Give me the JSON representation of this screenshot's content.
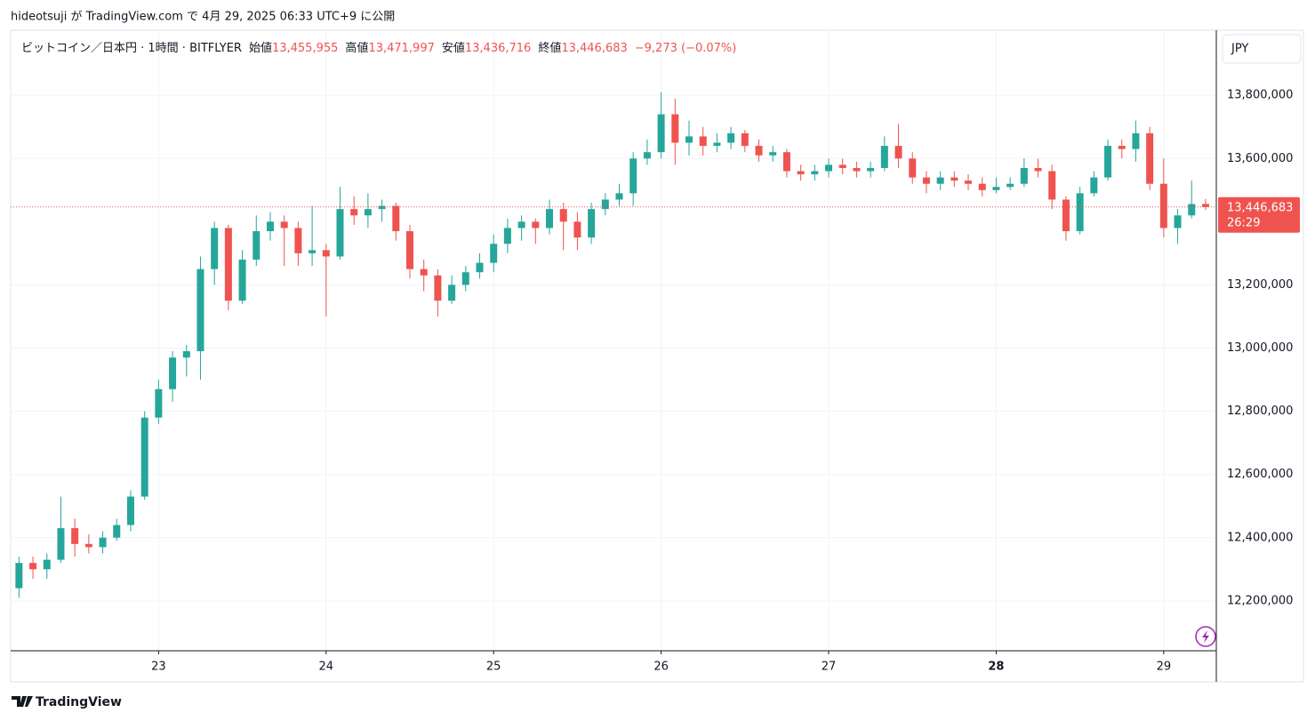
{
  "header": {
    "text": "hideotsuji が TradingView.com で 4月 29, 2025 06:33 UTC+9 に公開"
  },
  "footer": {
    "brand": "TradingView"
  },
  "chart_data": {
    "type": "candlestick",
    "symbol": "ビットコイン／日本円 · 1時間 · BITFLYER",
    "legend": [
      {
        "label": "始値",
        "value": "13,455,955"
      },
      {
        "label": "高値",
        "value": "13,471,997"
      },
      {
        "label": "安値",
        "value": "13,436,716"
      },
      {
        "label": "終値",
        "value": "13,446,683"
      }
    ],
    "change": "−9,273 (−0.07%)",
    "currency": "JPY",
    "last_price": {
      "value": 13446683,
      "label": "13,446,683"
    },
    "countdown": "26:29",
    "up_color": "#26a69a",
    "down_color": "#ef5350",
    "xlim": [
      22.117,
      29.314
    ],
    "xticks": [
      {
        "value": 23,
        "label": "23"
      },
      {
        "value": 24,
        "label": "24"
      },
      {
        "value": 25,
        "label": "25"
      },
      {
        "value": 26,
        "label": "26"
      },
      {
        "value": 27,
        "label": "27"
      },
      {
        "value": 28,
        "label": "28"
      },
      {
        "value": 29,
        "label": "29"
      }
    ],
    "bold_xtick": 28,
    "ylim": [
      12042000,
      14006000
    ],
    "yticks": [
      {
        "value": 12200000,
        "label": "12,200,000"
      },
      {
        "value": 12400000,
        "label": "12,400,000"
      },
      {
        "value": 12600000,
        "label": "12,600,000"
      },
      {
        "value": 12800000,
        "label": "12,800,000"
      },
      {
        "value": 13000000,
        "label": "13,000,000"
      },
      {
        "value": 13200000,
        "label": "13,200,000"
      },
      {
        "value": 13600000,
        "label": "13,600,000"
      },
      {
        "value": 13800000,
        "label": "13,800,000"
      }
    ],
    "grid": true,
    "x": [
      22.1667,
      22.25,
      22.3333,
      22.4167,
      22.5,
      22.5833,
      22.6667,
      22.75,
      22.8333,
      22.9167,
      23,
      23.0833,
      23.1667,
      23.25,
      23.3333,
      23.4167,
      23.5,
      23.5833,
      23.6667,
      23.75,
      23.8333,
      23.9167,
      24,
      24.0833,
      24.1667,
      24.25,
      24.3333,
      24.4167,
      24.5,
      24.5833,
      24.6667,
      24.75,
      24.8333,
      24.9167,
      25,
      25.0833,
      25.1667,
      25.25,
      25.3333,
      25.4167,
      25.5,
      25.5833,
      25.6667,
      25.75,
      25.8333,
      25.9167,
      26,
      26.0833,
      26.1667,
      26.25,
      26.3333,
      26.4167,
      26.5,
      26.5833,
      26.6667,
      26.75,
      26.8333,
      26.9167,
      27,
      27.0833,
      27.1667,
      27.25,
      27.3333,
      27.4167,
      27.5,
      27.5833,
      27.6667,
      27.75,
      27.8333,
      27.9167,
      28,
      28.0833,
      28.1667,
      28.25,
      28.3333,
      28.4167,
      28.5,
      28.5833,
      28.6667,
      28.75,
      28.8333,
      28.9167,
      29,
      29.0833,
      29.1667,
      29.25
    ],
    "open": [
      12240000,
      12320000,
      12300000,
      12330000,
      12430000,
      12380000,
      12370000,
      12400000,
      12440000,
      12530000,
      12780000,
      12870000,
      12970000,
      12990000,
      13250000,
      13380000,
      13150000,
      13280000,
      13370000,
      13400000,
      13380000,
      13300000,
      13310000,
      13290000,
      13440000,
      13420000,
      13440000,
      13450000,
      13370000,
      13250000,
      13230000,
      13150000,
      13200000,
      13240000,
      13270000,
      13330000,
      13380000,
      13400000,
      13380000,
      13440000,
      13400000,
      13350000,
      13440000,
      13470000,
      13490000,
      13600000,
      13620000,
      13740000,
      13650000,
      13670000,
      13640000,
      13650000,
      13680000,
      13640000,
      13610000,
      13620000,
      13560000,
      13550000,
      13560000,
      13580000,
      13570000,
      13560000,
      13570000,
      13640000,
      13600000,
      13540000,
      13520000,
      13540000,
      13530000,
      13520000,
      13500000,
      13510000,
      13520000,
      13570000,
      13560000,
      13470000,
      13370000,
      13490000,
      13540000,
      13640000,
      13630000,
      13680000,
      13520000,
      13380000,
      13420000,
      13455955
    ],
    "high": [
      12340000,
      12340000,
      12350000,
      12530000,
      12460000,
      12410000,
      12420000,
      12460000,
      12550000,
      12800000,
      12900000,
      12990000,
      13010000,
      13290000,
      13400000,
      13390000,
      13310000,
      13420000,
      13430000,
      13420000,
      13400000,
      13450000,
      13330000,
      13510000,
      13480000,
      13490000,
      13470000,
      13460000,
      13390000,
      13280000,
      13250000,
      13230000,
      13260000,
      13300000,
      13360000,
      13410000,
      13420000,
      13410000,
      13470000,
      13460000,
      13430000,
      13460000,
      13490000,
      13520000,
      13620000,
      13660000,
      13810000,
      13790000,
      13720000,
      13700000,
      13680000,
      13700000,
      13690000,
      13660000,
      13640000,
      13630000,
      13580000,
      13580000,
      13600000,
      13600000,
      13590000,
      13590000,
      13670000,
      13710000,
      13620000,
      13560000,
      13560000,
      13560000,
      13550000,
      13540000,
      13540000,
      13540000,
      13600000,
      13600000,
      13580000,
      13480000,
      13510000,
      13560000,
      13660000,
      13660000,
      13720000,
      13700000,
      13600000,
      13440000,
      13530000,
      13471997
    ],
    "low": [
      12210000,
      12270000,
      12270000,
      12320000,
      12340000,
      12350000,
      12350000,
      12390000,
      12420000,
      12520000,
      12760000,
      12830000,
      12910000,
      12900000,
      13200000,
      13120000,
      13140000,
      13260000,
      13340000,
      13260000,
      13260000,
      13260000,
      13100000,
      13280000,
      13390000,
      13380000,
      13400000,
      13340000,
      13220000,
      13180000,
      13100000,
      13140000,
      13180000,
      13220000,
      13240000,
      13300000,
      13340000,
      13330000,
      13360000,
      13310000,
      13310000,
      13330000,
      13420000,
      13450000,
      13450000,
      13580000,
      13600000,
      13580000,
      13610000,
      13610000,
      13620000,
      13630000,
      13620000,
      13590000,
      13590000,
      13540000,
      13530000,
      13530000,
      13540000,
      13550000,
      13540000,
      13540000,
      13560000,
      13570000,
      13520000,
      13490000,
      13500000,
      13510000,
      13500000,
      13480000,
      13490000,
      13500000,
      13510000,
      13540000,
      13440000,
      13340000,
      13360000,
      13480000,
      13530000,
      13600000,
      13590000,
      13500000,
      13350000,
      13330000,
      13410000,
      13436716
    ],
    "close": [
      12320000,
      12300000,
      12330000,
      12430000,
      12380000,
      12370000,
      12400000,
      12440000,
      12530000,
      12780000,
      12870000,
      12970000,
      12990000,
      13250000,
      13380000,
      13150000,
      13280000,
      13370000,
      13400000,
      13380000,
      13300000,
      13310000,
      13290000,
      13440000,
      13420000,
      13440000,
      13450000,
      13370000,
      13250000,
      13230000,
      13150000,
      13200000,
      13240000,
      13270000,
      13330000,
      13380000,
      13400000,
      13380000,
      13440000,
      13400000,
      13350000,
      13440000,
      13470000,
      13490000,
      13600000,
      13620000,
      13740000,
      13650000,
      13670000,
      13640000,
      13650000,
      13680000,
      13640000,
      13610000,
      13620000,
      13560000,
      13550000,
      13560000,
      13580000,
      13570000,
      13560000,
      13570000,
      13640000,
      13600000,
      13540000,
      13520000,
      13540000,
      13530000,
      13520000,
      13500000,
      13510000,
      13520000,
      13570000,
      13560000,
      13470000,
      13370000,
      13490000,
      13540000,
      13640000,
      13630000,
      13680000,
      13520000,
      13380000,
      13420000,
      13455955,
      13446683
    ]
  }
}
